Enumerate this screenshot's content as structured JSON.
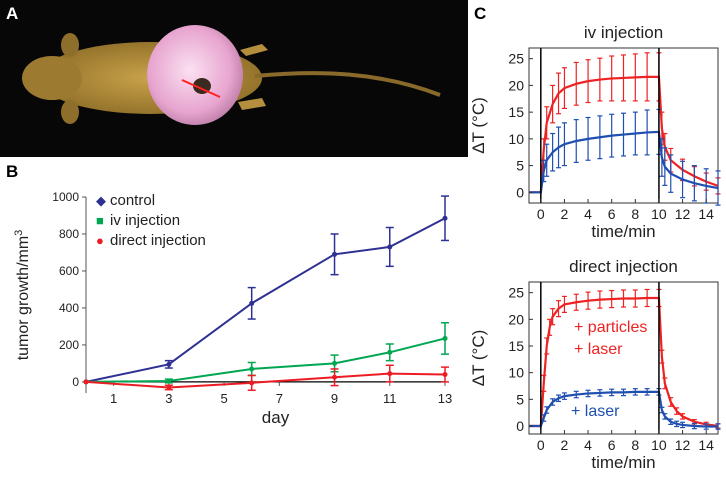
{
  "panel_labels": {
    "a": "A",
    "b": "B",
    "c": "C"
  },
  "colors": {
    "control": "#2e3192",
    "iv": "#00a651",
    "direct": "#ed1c24",
    "red": "#ee2222",
    "blue": "#1f4fb0"
  },
  "chart_data": [
    {
      "id": "B",
      "type": "line",
      "title": "",
      "xlabel": "day",
      "ylabel_parts": {
        "main": "tumor growth/mm",
        "sup": "3"
      },
      "xlim": [
        0,
        13
      ],
      "ylim": [
        -60,
        1000
      ],
      "x_ticks": [
        1,
        3,
        5,
        7,
        9,
        11,
        13
      ],
      "y_ticks": [
        0,
        200,
        400,
        600,
        800,
        1000
      ],
      "legend": [
        {
          "label": "control",
          "marker": "◆",
          "key": "control"
        },
        {
          "label": "iv injection",
          "marker": "■",
          "key": "iv"
        },
        {
          "label": "direct injection",
          "marker": "●",
          "key": "direct"
        }
      ],
      "series": [
        {
          "name": "control",
          "key": "control",
          "x": [
            0,
            3,
            6,
            9,
            11,
            13
          ],
          "y": [
            0,
            95,
            425,
            690,
            730,
            885
          ],
          "err": [
            0,
            20,
            85,
            110,
            105,
            120
          ]
        },
        {
          "name": "iv injection",
          "key": "iv",
          "x": [
            0,
            3,
            6,
            9,
            11,
            13
          ],
          "y": [
            0,
            5,
            70,
            100,
            160,
            235
          ],
          "err": [
            0,
            10,
            35,
            45,
            45,
            85
          ]
        },
        {
          "name": "direct injection",
          "key": "direct",
          "x": [
            0,
            3,
            6,
            9,
            11,
            13
          ],
          "y": [
            0,
            -30,
            -5,
            25,
            45,
            40
          ],
          "err": [
            0,
            12,
            40,
            45,
            45,
            40
          ]
        }
      ]
    },
    {
      "id": "C-top",
      "type": "line",
      "title": "iv injection",
      "xlabel": "time/min",
      "ylabel": "ΔT (°C)",
      "xlim": [
        -1,
        15
      ],
      "ylim": [
        -2,
        27
      ],
      "x_ticks": [
        0,
        2,
        4,
        6,
        8,
        10,
        12,
        14
      ],
      "y_ticks": [
        0,
        5,
        10,
        15,
        20,
        25
      ],
      "vlines": [
        0,
        10
      ],
      "series": [
        {
          "name": "red",
          "key": "red",
          "x": [
            -1,
            -0.5,
            0,
            0.25,
            0.5,
            1,
            1.5,
            2,
            3,
            4,
            5,
            6,
            7,
            8,
            9,
            10,
            10.25,
            10.5,
            11,
            12,
            13,
            14,
            15
          ],
          "y": [
            0,
            0,
            0,
            8,
            13,
            16.5,
            18.5,
            19.5,
            20.3,
            20.8,
            21.1,
            21.3,
            21.4,
            21.5,
            21.6,
            21.6,
            12,
            8.5,
            6,
            4.2,
            3,
            2,
            1.2
          ],
          "err": [
            0,
            0,
            0,
            2,
            3,
            3.5,
            3.8,
            3.8,
            4,
            4,
            4,
            4.2,
            4.3,
            4.4,
            4.5,
            4.5,
            3,
            2.5,
            2.2,
            2,
            1.8,
            1.6,
            1.5
          ]
        },
        {
          "name": "blue",
          "key": "blue",
          "x": [
            -1,
            -0.5,
            0,
            0.25,
            0.5,
            1,
            1.5,
            2,
            3,
            4,
            5,
            6,
            7,
            8,
            9,
            10,
            10.25,
            10.5,
            11,
            12,
            13,
            14,
            15
          ],
          "y": [
            0,
            0,
            0,
            4,
            6,
            7.5,
            8.4,
            9,
            9.6,
            10,
            10.3,
            10.6,
            10.8,
            11,
            11.2,
            11.3,
            6.5,
            4.8,
            3.5,
            2.4,
            1.7,
            1.2,
            0.8
          ],
          "err": [
            0,
            0,
            0,
            2,
            3,
            3.5,
            3.8,
            4,
            4,
            4,
            4,
            4,
            4,
            4,
            4.2,
            4.2,
            3.5,
            3.5,
            3.5,
            3.4,
            3.3,
            3.2,
            3.2
          ]
        }
      ]
    },
    {
      "id": "C-bottom",
      "type": "line",
      "title": "direct injection",
      "xlabel": "time/min",
      "ylabel": "ΔT (°C)",
      "xlim": [
        -1,
        15
      ],
      "ylim": [
        -1.5,
        27
      ],
      "x_ticks": [
        0,
        2,
        4,
        6,
        8,
        10,
        12,
        14
      ],
      "y_ticks": [
        0,
        5,
        10,
        15,
        20,
        25
      ],
      "vlines": [
        0,
        10
      ],
      "annotations": [
        {
          "text": "+ particles",
          "key": "red"
        },
        {
          "text": "+ laser",
          "key": "red"
        },
        {
          "text": "+ laser",
          "key": "blue"
        }
      ],
      "series": [
        {
          "name": "red",
          "key": "red",
          "x": [
            -1,
            -0.5,
            0,
            0.25,
            0.5,
            0.75,
            1,
            1.5,
            2,
            3,
            4,
            5,
            6,
            7,
            8,
            9,
            10,
            10.25,
            10.5,
            11,
            11.5,
            12,
            13,
            14,
            15
          ],
          "y": [
            0,
            0,
            0,
            8,
            15,
            18.5,
            20.5,
            22,
            22.8,
            23.2,
            23.5,
            23.7,
            23.8,
            23.9,
            23.9,
            24,
            24,
            13,
            8,
            4.5,
            2.8,
            1.8,
            0.8,
            0.3,
            0
          ],
          "err": [
            0,
            0,
            0,
            1.5,
            1.5,
            1.5,
            1.5,
            1.5,
            1.5,
            1.5,
            1.6,
            1.6,
            1.6,
            1.6,
            1.6,
            1.6,
            1.6,
            1.2,
            1,
            0.8,
            0.6,
            0.5,
            0.4,
            0.4,
            0.4
          ]
        },
        {
          "name": "blue",
          "key": "blue",
          "x": [
            -1,
            -0.5,
            0,
            0.25,
            0.5,
            1,
            1.5,
            2,
            3,
            4,
            5,
            6,
            7,
            8,
            9,
            10,
            10.25,
            10.5,
            11,
            11.5,
            12,
            13,
            14,
            15
          ],
          "y": [
            0,
            0,
            0,
            1.5,
            3,
            4.5,
            5.2,
            5.6,
            5.9,
            6.1,
            6.2,
            6.3,
            6.3,
            6.4,
            6.4,
            6.4,
            3,
            1.8,
            0.8,
            0.4,
            0.2,
            0,
            -0.1,
            -0.1
          ],
          "err": [
            0,
            0,
            0,
            0.6,
            0.6,
            0.6,
            0.6,
            0.6,
            0.6,
            0.6,
            0.6,
            0.6,
            0.6,
            0.6,
            0.6,
            0.6,
            0.5,
            0.5,
            0.5,
            0.5,
            0.5,
            0.5,
            0.5,
            0.5
          ]
        }
      ]
    }
  ]
}
